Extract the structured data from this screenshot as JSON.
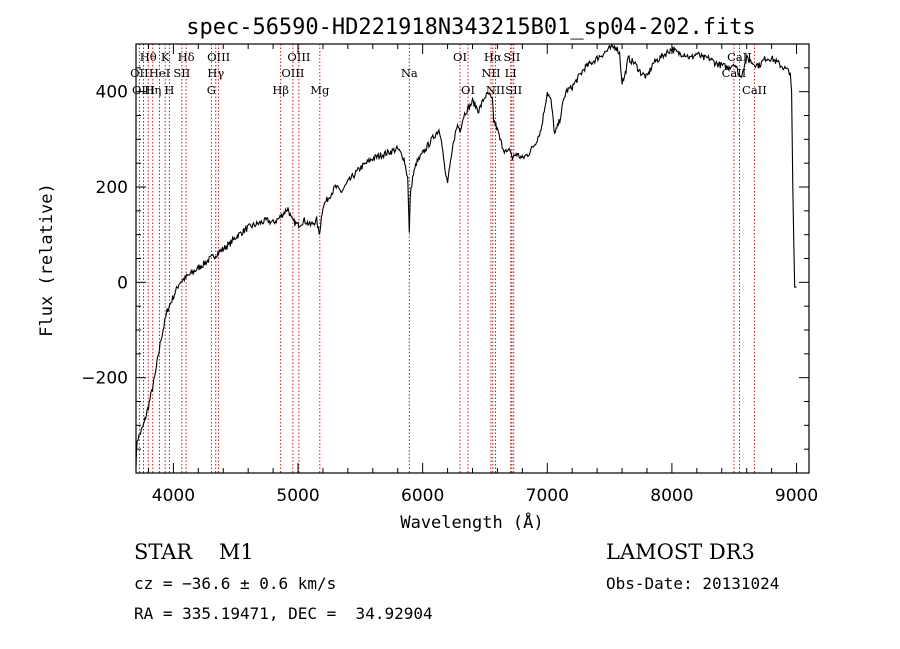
{
  "chart_data": {
    "type": "line",
    "title": "spec-56590-HD221918N343215B01_sp04-202.fits",
    "xlabel": "Wavelength (Å)",
    "ylabel": "Flux (relative)",
    "xlim": [
      3700,
      9100
    ],
    "ylim": [
      -400,
      500
    ],
    "xticks": [
      4000,
      5000,
      6000,
      7000,
      8000,
      9000
    ],
    "yticks": [
      -200,
      0,
      200,
      400
    ],
    "spectrum": {
      "x": [
        3700,
        3710,
        3730,
        3760,
        3800,
        3850,
        3900,
        3950,
        4000,
        4050,
        4100,
        4150,
        4200,
        4250,
        4300,
        4350,
        4400,
        4450,
        4500,
        4550,
        4600,
        4650,
        4700,
        4750,
        4800,
        4850,
        4900,
        4920,
        4950,
        5000,
        5050,
        5100,
        5150,
        5170,
        5200,
        5250,
        5300,
        5350,
        5400,
        5450,
        5500,
        5550,
        5600,
        5650,
        5700,
        5750,
        5800,
        5850,
        5880,
        5893,
        5900,
        5920,
        5950,
        6000,
        6050,
        6100,
        6130,
        6150,
        6180,
        6200,
        6230,
        6250,
        6280,
        6300,
        6330,
        6350,
        6380,
        6400,
        6450,
        6500,
        6530,
        6560,
        6570,
        6600,
        6620,
        6650,
        6680,
        6700,
        6720,
        6750,
        6800,
        6850,
        6900,
        6950,
        7000,
        7030,
        7060,
        7100,
        7130,
        7150,
        7200,
        7250,
        7300,
        7350,
        7400,
        7450,
        7500,
        7550,
        7580,
        7600,
        7620,
        7650,
        7700,
        7750,
        7800,
        7850,
        7900,
        7950,
        8000,
        8050,
        8100,
        8150,
        8200,
        8250,
        8300,
        8350,
        8400,
        8450,
        8500,
        8550,
        8600,
        8650,
        8700,
        8750,
        8800,
        8850,
        8900,
        8950,
        8960,
        8970,
        8985,
        9000
      ],
      "y": [
        -380,
        -330,
        -320,
        -300,
        -260,
        -200,
        -120,
        -60,
        -30,
        0,
        10,
        20,
        30,
        40,
        50,
        60,
        70,
        80,
        95,
        105,
        115,
        120,
        125,
        130,
        125,
        135,
        150,
        155,
        130,
        120,
        130,
        120,
        130,
        100,
        160,
        180,
        200,
        190,
        210,
        225,
        240,
        250,
        260,
        265,
        270,
        275,
        280,
        260,
        220,
        100,
        180,
        220,
        250,
        270,
        290,
        310,
        320,
        305,
        230,
        210,
        260,
        300,
        330,
        320,
        350,
        360,
        370,
        380,
        360,
        390,
        395,
        380,
        340,
        320,
        300,
        280,
        270,
        280,
        260,
        270,
        260,
        270,
        290,
        320,
        400,
        380,
        310,
        340,
        380,
        400,
        410,
        430,
        450,
        460,
        470,
        480,
        490,
        495,
        480,
        420,
        430,
        470,
        460,
        440,
        430,
        460,
        470,
        480,
        490,
        480,
        480,
        470,
        480,
        470,
        470,
        460,
        455,
        450,
        460,
        430,
        470,
        460,
        455,
        470,
        470,
        460,
        450,
        440,
        400,
        200,
        -10,
        -10
      ]
    },
    "lines": [
      {
        "name": "Hθ",
        "wl": 3798,
        "row": 0
      },
      {
        "name": "OII",
        "wl": 3727,
        "row": 1
      },
      {
        "name": "OIII",
        "wl": 3760,
        "row": 2
      },
      {
        "name": "K",
        "wl": 3934,
        "row": 0
      },
      {
        "name": "HeI",
        "wl": 3889,
        "row": 1
      },
      {
        "name": "Hη",
        "wl": 3835,
        "row": 2
      },
      {
        "name": "Hδ",
        "wl": 4102,
        "row": 0
      },
      {
        "name": "SII",
        "wl": 4068,
        "row": 1
      },
      {
        "name": "H",
        "wl": 3968,
        "row": 2
      },
      {
        "name": "OIII",
        "wl": 4363,
        "row": 0
      },
      {
        "name": "Hγ",
        "wl": 4340,
        "row": 1
      },
      {
        "name": "G",
        "wl": 4305,
        "row": 2
      },
      {
        "name": "OIII",
        "wl": 5007,
        "row": 0
      },
      {
        "name": "OIII",
        "wl": 4959,
        "row": 1
      },
      {
        "name": "Hβ",
        "wl": 4861,
        "row": 2
      },
      {
        "name": "Mg",
        "wl": 5175,
        "row": 2
      },
      {
        "name": "Na",
        "wl": 5893,
        "row": 1
      },
      {
        "name": "OI",
        "wl": 6300,
        "row": 0
      },
      {
        "name": "OI",
        "wl": 6364,
        "row": 2
      },
      {
        "name": "Hα",
        "wl": 6563,
        "row": 0
      },
      {
        "name": "SII",
        "wl": 6716,
        "row": 0
      },
      {
        "name": "NII",
        "wl": 6548,
        "row": 1
      },
      {
        "name": "LI",
        "wl": 6707,
        "row": 1
      },
      {
        "name": "NII",
        "wl": 6584,
        "row": 2
      },
      {
        "name": "SII",
        "wl": 6731,
        "row": 2
      },
      {
        "name": "CaII",
        "wl": 8542,
        "row": 0
      },
      {
        "name": "CaII",
        "wl": 8498,
        "row": 1
      },
      {
        "name": "CaII",
        "wl": 8662,
        "row": 2
      }
    ]
  },
  "info": {
    "object": "STAR    M1",
    "cz": "cz = −36.6 ± 0.6 km/s",
    "coords": "RA = 335.19471, DEC =  34.92904",
    "survey": "LAMOST DR3",
    "obsdate": "Obs-Date: 20131024"
  },
  "colors": {
    "axis": "#000000",
    "spectrum": "#000000",
    "line_marker": "#c00000"
  }
}
